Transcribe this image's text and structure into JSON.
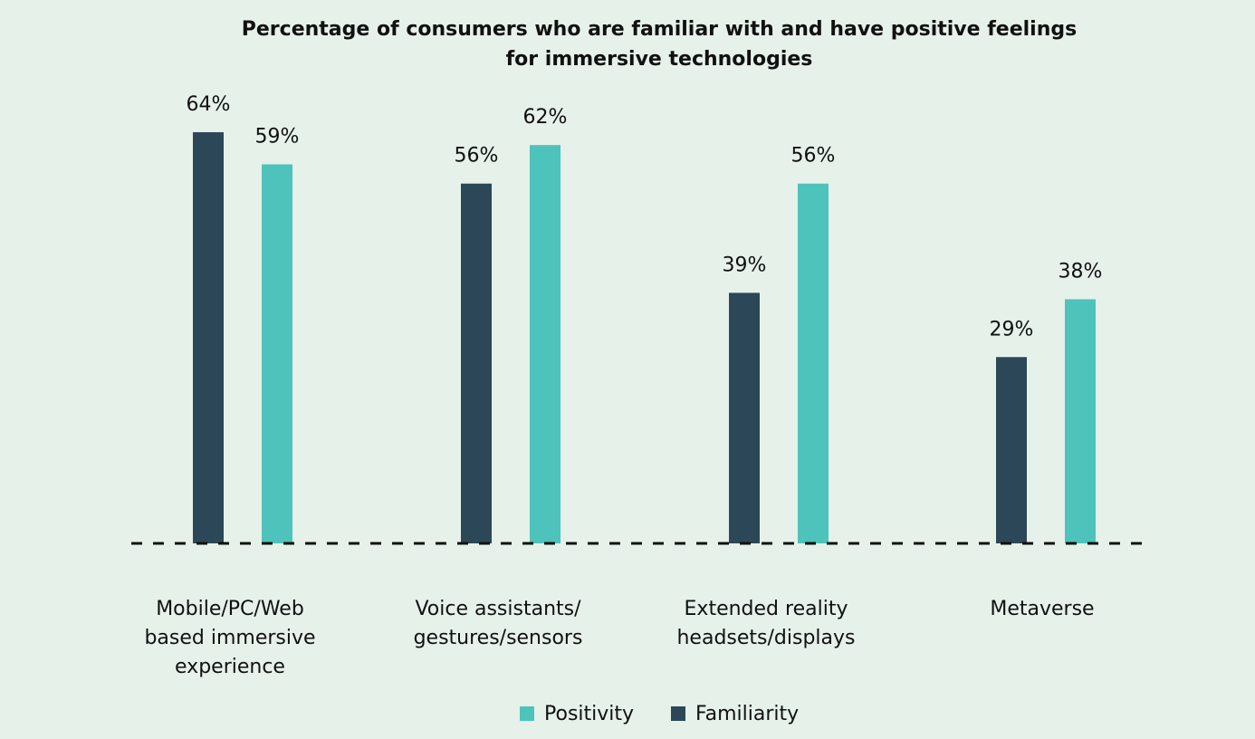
{
  "chart_data": {
    "type": "bar",
    "title": "Percentage of consumers who are familiar with and have positive feelings for immersive technologies",
    "title_lines": [
      "Percentage of consumers who are familiar with and have positive feelings",
      "for immersive technologies"
    ],
    "categories": [
      "Mobile/PC/Web based immersive experience",
      "Voice assistants/ gestures/sensors",
      "Extended reality headsets/displays",
      "Metaverse"
    ],
    "category_lines": [
      [
        "Mobile/PC/Web",
        "based immersive",
        "experience"
      ],
      [
        "Voice assistants/",
        "gestures/sensors"
      ],
      [
        "Extended reality",
        "headsets/displays"
      ],
      [
        "Metaverse"
      ]
    ],
    "series": [
      {
        "name": "Familiarity",
        "color": "#2c4858",
        "values": [
          64,
          56,
          39,
          29
        ],
        "labels": [
          "64%",
          "56%",
          "39%",
          "29%"
        ]
      },
      {
        "name": "Positivity",
        "color": "#4ec3bc",
        "values": [
          59,
          62,
          56,
          38
        ],
        "labels": [
          "59%",
          "62%",
          "56%",
          "38%"
        ]
      }
    ],
    "legend": [
      {
        "name": "Positivity",
        "color": "#4ec3bc"
      },
      {
        "name": "Familiarity",
        "color": "#2c4858"
      }
    ],
    "legend_position": "bottom",
    "xlabel": "",
    "ylabel": "",
    "ylim": [
      0,
      70
    ],
    "grid": false,
    "baseline_style": "dashed"
  }
}
